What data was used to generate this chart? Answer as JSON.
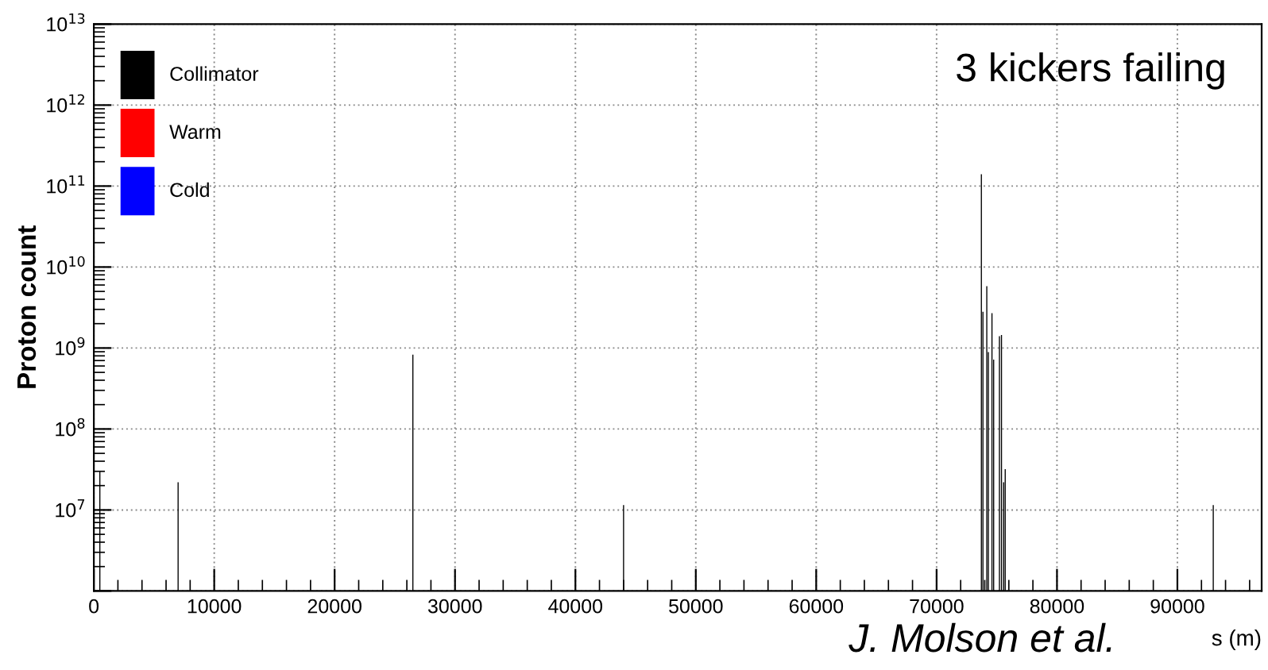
{
  "chart_data": {
    "type": "bar",
    "ylabel": "Proton count",
    "xlabel": "s (m)",
    "series": [
      {
        "name": "Collimator",
        "color": "#000000",
        "x": [
          500,
          7000,
          26500,
          44000,
          73720,
          73850,
          74170,
          74300,
          74600,
          74740,
          75220,
          75390,
          75570,
          75700,
          92980
        ],
        "values": [
          30000000.0,
          22000000.0,
          830000000.0,
          11500000.0,
          140000000000.0,
          2800000000.0,
          5800000000.0,
          890000000.0,
          2700000000.0,
          720000000.0,
          1400000000.0,
          1450000000.0,
          22000000.0,
          32000000.0,
          11500000.0
        ]
      },
      {
        "name": "Warm",
        "color": "#ff0000"
      },
      {
        "name": "Cold",
        "color": "#0000ff"
      }
    ],
    "log": "y",
    "xlim": [
      0,
      97000
    ],
    "ylim": [
      1000000.0,
      10000000000000.0
    ],
    "xticks": [
      0,
      10000,
      20000,
      30000,
      40000,
      50000,
      60000,
      70000,
      80000,
      90000
    ],
    "yticks": [
      {
        "value": 1000000.0,
        "label": null
      },
      {
        "value": 10000000.0,
        "label": "10$^{7}$"
      },
      {
        "value": 100000000.0,
        "label": "10$^{8}$"
      },
      {
        "value": 1000000000.0,
        "label": "10$^{9}$"
      },
      {
        "value": 10000000000.0,
        "label": "10$^{10}$"
      },
      {
        "value": 100000000000.0,
        "label": "10$^{11}$"
      },
      {
        "value": 1000000000000.0,
        "label": "10$^{12}$"
      },
      {
        "value": 10000000000000.0,
        "label": "10$^{13}$"
      }
    ],
    "grid": true,
    "legend": "top left",
    "annotations": [
      "3 kickers failing",
      "J. Molson et al."
    ]
  }
}
